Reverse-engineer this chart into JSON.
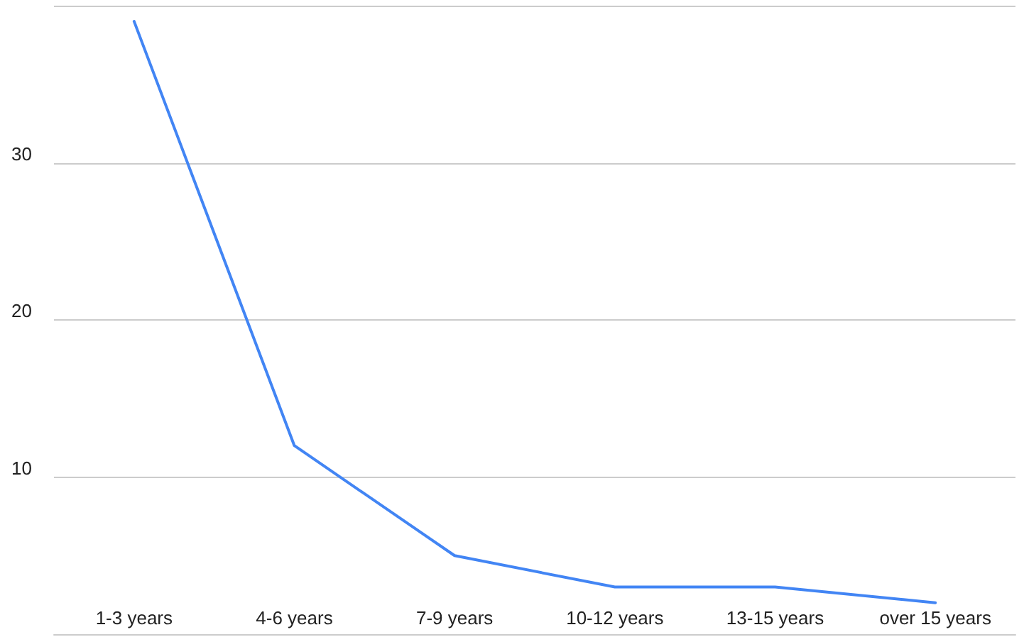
{
  "chart_data": {
    "type": "line",
    "categories": [
      "1-3 years",
      "4-6 years",
      "7-9 years",
      "10-12 years",
      "13-15 years",
      "over 15 years"
    ],
    "series": [
      {
        "color": "#4285f4",
        "values": [
          39,
          12,
          5,
          3,
          3,
          2
        ]
      }
    ],
    "ylim": [
      0,
      40
    ],
    "yticks": [
      10,
      20,
      30,
      {
        "value": 40,
        "label": null
      }
    ],
    "grid": "y",
    "marker": "none",
    "line_style": "solid"
  }
}
